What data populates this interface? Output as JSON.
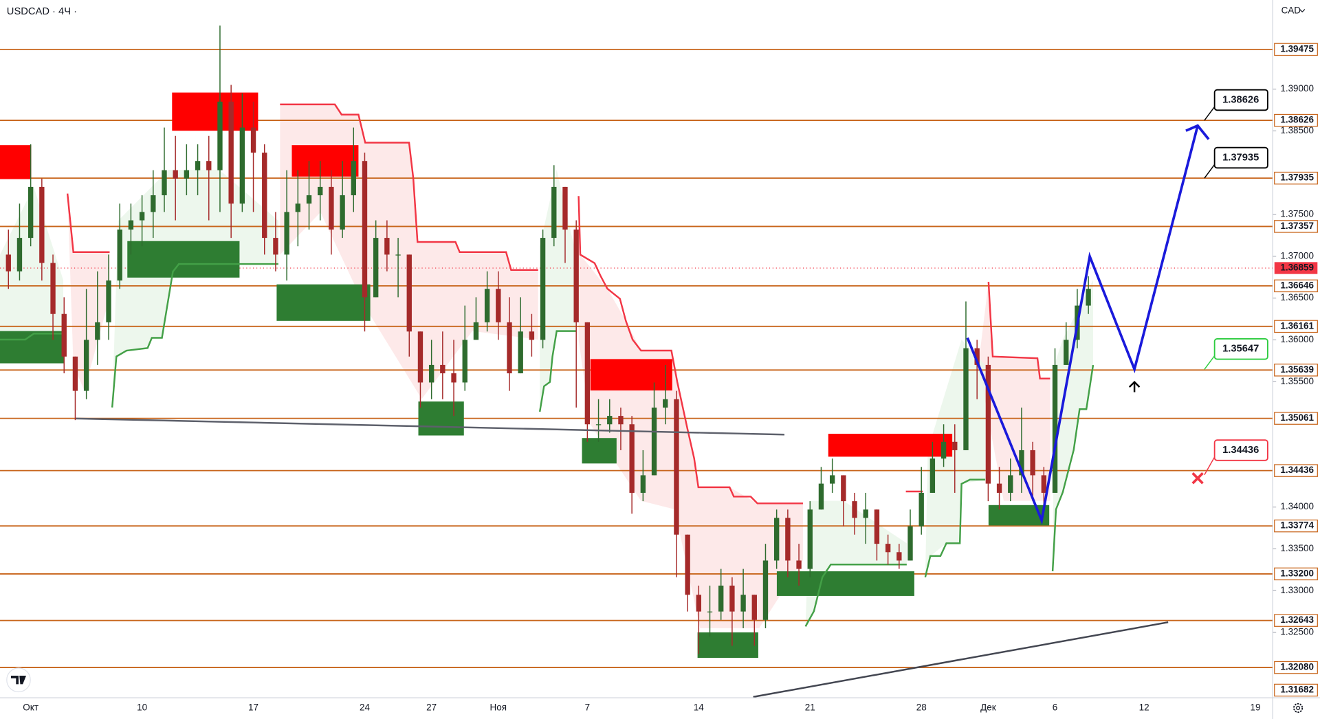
{
  "chart_data": {
    "type": "candlestick",
    "title": "USDCAD · 4Ч ·",
    "currency": "CAD",
    "categories": [
      null,
      null,
      "Окт",
      null,
      null,
      null,
      null,
      null,
      null,
      null,
      null,
      null,
      "10",
      null,
      null,
      null,
      null,
      null,
      null,
      null,
      null,
      null,
      "17",
      null,
      null,
      null,
      null,
      null,
      null,
      null,
      null,
      null,
      "24",
      null,
      null,
      null,
      null,
      null,
      "27",
      null,
      null,
      null,
      null,
      null,
      "Ноя",
      null,
      null,
      null,
      null,
      null,
      null,
      null,
      "7",
      null,
      null,
      null,
      null,
      null,
      null,
      null,
      null,
      null,
      "14",
      null,
      null,
      null,
      null,
      null,
      null,
      null,
      null,
      null,
      "21",
      null,
      null,
      null,
      null,
      null,
      null,
      null,
      null,
      null,
      "28",
      null,
      null,
      null,
      null,
      null,
      "Дек",
      null,
      null,
      null,
      null,
      null,
      "6",
      null,
      null,
      null,
      null,
      null,
      null,
      null,
      "12",
      null,
      null,
      null,
      null,
      null,
      null,
      null,
      null,
      null,
      "19"
    ],
    "open": [
      1.3702,
      1.3682,
      1.3722,
      1.3783,
      1.3692,
      1.3631,
      1.358,
      1.3539,
      1.36,
      1.3621,
      1.3671,
      1.3732,
      1.3743,
      1.3753,
      1.3773,
      1.3803,
      1.3793,
      1.3803,
      1.3814,
      1.3803,
      1.3885,
      1.3763,
      1.3854,
      1.3824,
      1.3722,
      1.3702,
      1.3753,
      1.3763,
      1.3773,
      1.3783,
      1.3732,
      1.3773,
      1.3814,
      1.3651,
      1.3722,
      1.3702,
      1.3702,
      1.361,
      1.3549,
      1.357,
      1.356,
      1.3549,
      1.36,
      1.3621,
      1.3661,
      1.3621,
      1.356,
      1.361,
      1.36,
      1.3722,
      1.3783,
      1.3732,
      1.3621,
      1.3499,
      1.3499,
      1.3509,
      1.3499,
      1.3417,
      1.3438,
      1.3519,
      1.3529,
      1.3367,
      1.3295,
      1.3275,
      1.3275,
      1.3306,
      1.3275,
      1.3295,
      1.3265,
      1.3336,
      1.3387,
      1.3336,
      1.3326,
      1.3397,
      1.3428,
      1.3438,
      1.3407,
      1.3387,
      1.3397,
      1.3356,
      1.3346,
      1.3336,
      1.3377,
      1.3417,
      1.3458,
      1.3478,
      1.3468,
      1.359,
      1.357,
      1.3428,
      1.3417,
      1.3438,
      1.3468,
      1.3438,
      1.3417,
      1.357,
      1.36,
      1.3641,
      null,
      null,
      null,
      null,
      null,
      null,
      null,
      null,
      null,
      null,
      null,
      null,
      null,
      null,
      null
    ],
    "high": [
      1.3732,
      1.3763,
      1.3834,
      1.3793,
      1.3702,
      1.3651,
      1.358,
      1.3661,
      1.3682,
      1.3702,
      1.3763,
      1.3763,
      1.3773,
      1.3803,
      1.3854,
      1.3844,
      1.3834,
      1.3834,
      1.3844,
      1.3976,
      1.3905,
      1.3895,
      1.3885,
      1.3834,
      1.3753,
      1.3803,
      1.3803,
      1.3814,
      1.3814,
      1.3803,
      1.3814,
      1.3854,
      1.3824,
      1.3743,
      1.3743,
      1.3722,
      1.3702,
      1.361,
      1.36,
      1.361,
      1.36,
      1.3641,
      1.3651,
      1.3682,
      1.3682,
      1.3651,
      1.3651,
      1.3631,
      1.3732,
      1.3809,
      1.3783,
      1.3743,
      1.3621,
      1.3529,
      1.3529,
      1.3519,
      1.3509,
      1.3468,
      1.3549,
      1.357,
      1.3539,
      1.3367,
      1.3306,
      1.3306,
      1.3326,
      1.3316,
      1.3326,
      1.3295,
      1.3356,
      1.3397,
      1.3397,
      1.3356,
      1.3407,
      1.3448,
      1.3458,
      1.3438,
      1.3417,
      1.3417,
      1.3397,
      1.3367,
      1.3356,
      1.3397,
      1.3448,
      1.3478,
      1.3499,
      1.3499,
      1.3646,
      1.36,
      1.358,
      1.3448,
      1.3458,
      1.3519,
      1.3478,
      1.3448,
      1.359,
      1.3621,
      1.3661,
      1.3676,
      null,
      null,
      null,
      null,
      null,
      null,
      null,
      null,
      null,
      null,
      null,
      null,
      null,
      null,
      null
    ],
    "low": [
      1.3661,
      1.3671,
      1.3712,
      1.3671,
      1.36,
      1.356,
      1.3504,
      1.3529,
      1.357,
      1.36,
      1.3661,
      1.3702,
      1.3712,
      1.3722,
      1.3753,
      1.3743,
      1.3773,
      1.3773,
      1.3743,
      1.3753,
      1.3722,
      1.3753,
      1.3753,
      1.3702,
      1.3682,
      1.3671,
      1.3712,
      1.3732,
      1.3743,
      1.3702,
      1.3722,
      1.3753,
      1.361,
      1.3651,
      1.3682,
      1.3651,
      1.358,
      1.3519,
      1.3529,
      1.3529,
      1.3509,
      1.3539,
      1.36,
      1.361,
      1.36,
      1.3539,
      1.356,
      1.358,
      1.359,
      1.3712,
      1.3692,
      1.3519,
      1.3478,
      1.3478,
      1.3489,
      1.3468,
      1.3392,
      1.3407,
      1.3438,
      1.3499,
      1.3316,
      1.3275,
      1.3224,
      1.3245,
      1.3265,
      1.3234,
      1.3255,
      1.3234,
      1.3255,
      1.3326,
      1.3316,
      1.3306,
      1.3316,
      1.3397,
      1.3417,
      1.3377,
      1.3367,
      1.3356,
      1.3336,
      1.3331,
      1.3326,
      1.3336,
      1.3367,
      1.3417,
      1.3448,
      1.3417,
      1.3468,
      1.3529,
      1.3407,
      1.3397,
      1.3407,
      1.3417,
      1.3407,
      1.3397,
      1.3417,
      1.357,
      1.359,
      1.3631,
      null,
      null,
      null,
      null,
      null,
      null,
      null,
      null,
      null,
      null,
      null,
      null,
      null,
      null,
      null
    ],
    "close": [
      1.3682,
      1.3722,
      1.3783,
      1.3692,
      1.3631,
      1.358,
      1.3539,
      1.36,
      1.3621,
      1.3671,
      1.3732,
      1.3743,
      1.3753,
      1.3773,
      1.3803,
      1.3793,
      1.3803,
      1.3814,
      1.3803,
      1.3885,
      1.3763,
      1.3854,
      1.3824,
      1.3722,
      1.3702,
      1.3753,
      1.3763,
      1.3773,
      1.3783,
      1.3732,
      1.3773,
      1.3814,
      1.3651,
      1.3722,
      1.3702,
      1.3702,
      1.361,
      1.3549,
      1.357,
      1.356,
      1.3549,
      1.36,
      1.3621,
      1.3661,
      1.3621,
      1.356,
      1.361,
      1.36,
      1.3722,
      1.3783,
      1.3732,
      1.3621,
      1.3499,
      1.3499,
      1.3509,
      1.3499,
      1.3417,
      1.3438,
      1.3519,
      1.3529,
      1.3367,
      1.3295,
      1.3275,
      1.3275,
      1.3306,
      1.3275,
      1.3295,
      1.3265,
      1.3336,
      1.3387,
      1.3336,
      1.3326,
      1.3397,
      1.3428,
      1.3438,
      1.3407,
      1.3387,
      1.3397,
      1.3356,
      1.3346,
      1.3336,
      1.3377,
      1.3417,
      1.3458,
      1.3478,
      1.3468,
      1.359,
      1.357,
      1.3428,
      1.3417,
      1.3438,
      1.3468,
      1.3438,
      1.3417,
      1.357,
      1.36,
      1.3641,
      1.3661,
      null,
      null,
      null,
      null,
      null,
      null,
      null,
      null,
      null,
      null,
      null,
      null,
      null,
      null,
      null
    ],
    "up_color": "#2e6b2e",
    "down_color": "#a52a2a",
    "level_color": "#c8651b",
    "ylim": [
      1.31718,
      1.40066
    ],
    "yticks": [
      {
        "value": 1.39,
        "label": "1.39000"
      },
      {
        "value": 1.385,
        "label": "1.38500"
      },
      {
        "value": 1.375,
        "label": "1.37500"
      },
      {
        "value": 1.37,
        "label": "1.37000"
      },
      {
        "value": 1.365,
        "label": "1.36500"
      },
      {
        "value": 1.36,
        "label": "1.36000"
      },
      {
        "value": 1.355,
        "label": "1.35500"
      },
      {
        "value": 1.34,
        "label": "1.34000"
      },
      {
        "value": 1.335,
        "label": "1.33500"
      },
      {
        "value": 1.33,
        "label": "1.33000"
      },
      {
        "value": 1.325,
        "label": "1.32500"
      }
    ],
    "levels": [
      1.39475,
      1.38626,
      1.37935,
      1.37357,
      1.36646,
      1.36161,
      1.35639,
      1.35061,
      1.34436,
      1.33774,
      {
        "value": 1.332,
        "label": "1.33200"
      },
      1.32643,
      {
        "value": 1.3208,
        "label": "1.32080"
      },
      1.31682
    ],
    "last_price": 1.36859,
    "last_price_color": "#f23645",
    "targets": [
      {
        "value": 1.38626,
        "color": "#000000"
      },
      {
        "value": 1.37935,
        "color": "#000000"
      },
      {
        "value": 1.35647,
        "color": "#2ecc40"
      },
      {
        "value": 1.34436,
        "color": "#f23645"
      }
    ]
  }
}
